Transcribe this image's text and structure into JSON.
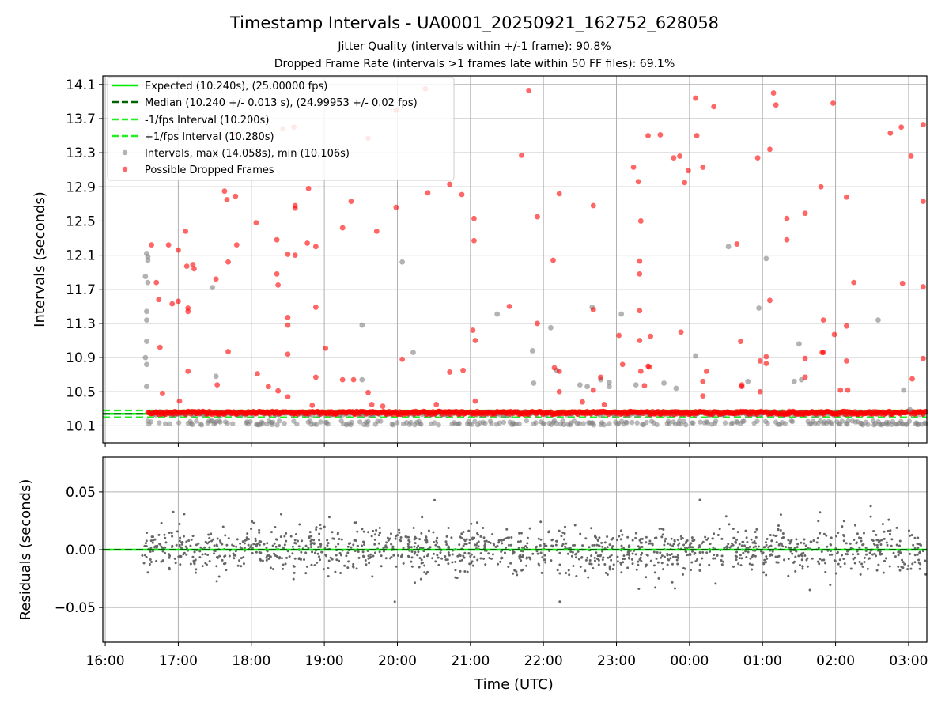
{
  "title": "Timestamp Intervals - UA0001_20250921_162752_628058",
  "subtitle_lines": [
    "Jitter Quality (intervals within +/-1 frame): 90.8%",
    "Dropped Frame Rate (intervals >1 frames late within 50 FF files): 69.1%"
  ],
  "colors": {
    "expected": "#00ee00",
    "median": "#006400",
    "fps_bounds": "#22ee22",
    "intervals": "#808080",
    "dropped": "#ff0000",
    "residuals": "#666666",
    "grid": "#b0b0b0"
  },
  "chart_data": [
    {
      "type": "scatter",
      "panel": "intervals",
      "ylabel": "Intervals (seconds)",
      "xlabel": "",
      "x_range": [
        "16:00",
        "03:15"
      ],
      "x_ticks": [
        "16:00",
        "17:00",
        "18:00",
        "19:00",
        "20:00",
        "21:00",
        "22:00",
        "23:00",
        "00:00",
        "01:00",
        "02:00",
        "03:00"
      ],
      "ylim": [
        9.9,
        14.2
      ],
      "y_ticks": [
        10.1,
        10.5,
        10.9,
        11.3,
        11.7,
        12.1,
        12.5,
        12.9,
        13.3,
        13.7,
        14.1
      ],
      "y_tick_labels": [
        "10.1",
        "10.5",
        "10.9",
        "11.3",
        "11.7",
        "12.1",
        "12.5",
        "12.9",
        "13.3",
        "13.7",
        "14.1"
      ],
      "grid": true,
      "legend_position": "top-left",
      "legend": [
        {
          "label": "Expected (10.240s), (25.00000 fps)",
          "style": "line",
          "color_key": "expected"
        },
        {
          "label": "Median (10.240 +/- 0.013 s), (24.99953 +/- 0.02 fps)",
          "style": "dashed",
          "color_key": "median"
        },
        {
          "label": "-1/fps Interval (10.200s)",
          "style": "dashed",
          "color_key": "fps_bounds"
        },
        {
          "label": "+1/fps Interval (10.280s)",
          "style": "dashed",
          "color_key": "fps_bounds"
        },
        {
          "label": "Intervals, max (14.058s), min (10.106s)",
          "style": "dot",
          "color_key": "intervals"
        },
        {
          "label": "Possible Dropped Frames",
          "style": "dot",
          "color_key": "dropped"
        }
      ],
      "series": [
        {
          "name": "Expected (10.240s), (25.00000 fps)",
          "kind": "hline",
          "y": 10.24
        },
        {
          "name": "Median (10.240 +/- 0.013 s), (24.99953 +/- 0.02 fps)",
          "kind": "hline",
          "y": 10.24
        },
        {
          "name": "-1/fps Interval (10.200s)",
          "kind": "hline",
          "y": 10.2
        },
        {
          "name": "+1/fps Interval (10.280s)",
          "kind": "hline",
          "y": 10.28
        },
        {
          "name": "Possible Dropped Frames",
          "kind": "scatter",
          "points": [
            [
              "16:38",
              12.22
            ],
            [
              "16:42",
              11.78
            ],
            [
              "16:44",
              11.58
            ],
            [
              "16:45",
              11.02
            ],
            [
              "16:47",
              10.48
            ],
            [
              "16:52",
              12.22
            ],
            [
              "16:55",
              11.53
            ],
            [
              "17:00",
              12.16
            ],
            [
              "17:00",
              11.56
            ],
            [
              "17:01",
              10.39
            ],
            [
              "17:06",
              12.38
            ],
            [
              "17:07",
              11.97
            ],
            [
              "17:08",
              11.48
            ],
            [
              "17:08",
              11.44
            ],
            [
              "17:08",
              10.74
            ],
            [
              "17:12",
              11.99
            ],
            [
              "17:13",
              11.94
            ],
            [
              "17:31",
              11.82
            ],
            [
              "17:32",
              10.58
            ],
            [
              "17:38",
              12.85
            ],
            [
              "17:40",
              12.75
            ],
            [
              "17:41",
              12.02
            ],
            [
              "17:41",
              10.97
            ],
            [
              "17:46",
              13.52
            ],
            [
              "17:47",
              12.79
            ],
            [
              "17:48",
              12.22
            ],
            [
              "18:04",
              12.48
            ],
            [
              "18:05",
              10.71
            ],
            [
              "18:14",
              10.56
            ],
            [
              "18:21",
              12.28
            ],
            [
              "18:21",
              11.88
            ],
            [
              "18:22",
              11.75
            ],
            [
              "18:22",
              10.51
            ],
            [
              "18:26",
              13.58
            ],
            [
              "18:30",
              12.11
            ],
            [
              "18:30",
              11.37
            ],
            [
              "18:30",
              11.28
            ],
            [
              "18:30",
              10.94
            ],
            [
              "18:30",
              10.44
            ],
            [
              "18:35",
              13.6
            ],
            [
              "18:36",
              12.68
            ],
            [
              "18:36",
              12.65
            ],
            [
              "18:36",
              12.1
            ],
            [
              "18:46",
              12.24
            ],
            [
              "18:47",
              12.88
            ],
            [
              "18:50",
              10.34
            ],
            [
              "18:53",
              12.2
            ],
            [
              "18:53",
              11.49
            ],
            [
              "18:53",
              10.67
            ],
            [
              "19:01",
              11.01
            ],
            [
              "19:15",
              12.42
            ],
            [
              "19:15",
              10.64
            ],
            [
              "19:22",
              12.73
            ],
            [
              "19:24",
              10.64
            ],
            [
              "19:36",
              13.47
            ],
            [
              "19:36",
              10.49
            ],
            [
              "19:39",
              10.35
            ],
            [
              "19:43",
              12.38
            ],
            [
              "19:48",
              10.33
            ],
            [
              "19:59",
              13.8
            ],
            [
              "19:59",
              12.66
            ],
            [
              "20:04",
              10.88
            ],
            [
              "20:23",
              14.05
            ],
            [
              "20:25",
              12.83
            ],
            [
              "20:32",
              10.35
            ],
            [
              "20:43",
              12.93
            ],
            [
              "20:43",
              10.73
            ],
            [
              "20:53",
              12.81
            ],
            [
              "20:54",
              10.75
            ],
            [
              "21:03",
              12.53
            ],
            [
              "21:03",
              12.27
            ],
            [
              "21:02",
              11.22
            ],
            [
              "21:04",
              11.1
            ],
            [
              "21:04",
              10.39
            ],
            [
              "21:32",
              11.5
            ],
            [
              "21:42",
              13.27
            ],
            [
              "21:48",
              14.03
            ],
            [
              "21:55",
              12.55
            ],
            [
              "21:55",
              11.3
            ],
            [
              "22:08",
              12.04
            ],
            [
              "22:09",
              10.78
            ],
            [
              "22:13",
              12.82
            ],
            [
              "22:13",
              10.74
            ],
            [
              "22:13",
              10.5
            ],
            [
              "22:32",
              10.38
            ],
            [
              "22:41",
              12.68
            ],
            [
              "22:41",
              11.46
            ],
            [
              "22:41",
              10.52
            ],
            [
              "22:47",
              10.67
            ],
            [
              "22:50",
              10.35
            ],
            [
              "23:02",
              11.16
            ],
            [
              "23:05",
              10.82
            ],
            [
              "23:14",
              13.13
            ],
            [
              "23:18",
              12.96
            ],
            [
              "23:20",
              12.5
            ],
            [
              "23:19",
              12.03
            ],
            [
              "23:19",
              11.88
            ],
            [
              "23:19",
              11.45
            ],
            [
              "23:19",
              11.1
            ],
            [
              "23:20",
              10.74
            ],
            [
              "23:23",
              10.57
            ],
            [
              "23:26",
              13.5
            ],
            [
              "23:28",
              11.15
            ],
            [
              "23:27",
              10.79
            ],
            [
              "23:26",
              10.8
            ],
            [
              "23:36",
              13.51
            ],
            [
              "23:47",
              13.24
            ],
            [
              "23:52",
              13.26
            ],
            [
              "23:53",
              11.2
            ],
            [
              "23:56",
              12.95
            ],
            [
              "23:59",
              13.09
            ],
            [
              "23:58",
              10.26
            ],
            [
              "00:05",
              13.94
            ],
            [
              "00:06",
              13.5
            ],
            [
              "00:11",
              13.13
            ],
            [
              "00:11",
              10.62
            ],
            [
              "00:11",
              10.45
            ],
            [
              "00:14",
              10.74
            ],
            [
              "00:20",
              13.84
            ],
            [
              "00:39",
              12.23
            ],
            [
              "00:42",
              11.09
            ],
            [
              "00:43",
              10.56
            ],
            [
              "00:43",
              10.58
            ],
            [
              "00:56",
              13.24
            ],
            [
              "00:58",
              10.86
            ],
            [
              "00:58",
              10.5
            ],
            [
              "01:03",
              10.91
            ],
            [
              "01:03",
              10.83
            ],
            [
              "01:06",
              11.57
            ],
            [
              "01:06",
              13.34
            ],
            [
              "01:09",
              14.0
            ],
            [
              "01:11",
              13.86
            ],
            [
              "01:20",
              12.53
            ],
            [
              "01:20",
              12.28
            ],
            [
              "01:22",
              10.27
            ],
            [
              "01:35",
              10.67
            ],
            [
              "01:35",
              12.59
            ],
            [
              "01:35",
              10.89
            ],
            [
              "01:48",
              12.9
            ],
            [
              "01:50",
              11.34
            ],
            [
              "01:50",
              10.96
            ],
            [
              "01:49",
              10.96
            ],
            [
              "01:58",
              13.88
            ],
            [
              "01:59",
              11.17
            ],
            [
              "02:04",
              10.52
            ],
            [
              "02:09",
              12.78
            ],
            [
              "02:09",
              11.27
            ],
            [
              "02:09",
              10.86
            ],
            [
              "02:10",
              10.52
            ],
            [
              "02:15",
              11.78
            ],
            [
              "02:45",
              13.53
            ],
            [
              "02:54",
              13.6
            ],
            [
              "02:55",
              11.77
            ],
            [
              "03:02",
              13.26
            ],
            [
              "03:03",
              10.65
            ],
            [
              "03:12",
              13.63
            ],
            [
              "03:12",
              12.73
            ],
            [
              "03:12",
              11.73
            ],
            [
              "03:12",
              10.89
            ]
          ]
        },
        {
          "name": "Intervals, max (14.058s), min (10.106s)",
          "kind": "scatter",
          "points": [
            [
              "16:34",
              12.12
            ],
            [
              "16:35",
              12.08
            ],
            [
              "16:35",
              12.04
            ],
            [
              "16:33",
              11.85
            ],
            [
              "16:35",
              11.78
            ],
            [
              "16:34",
              11.44
            ],
            [
              "16:34",
              11.34
            ],
            [
              "16:34",
              11.09
            ],
            [
              "16:33",
              10.9
            ],
            [
              "16:34",
              10.82
            ],
            [
              "16:34",
              10.56
            ],
            [
              "17:28",
              11.72
            ],
            [
              "17:31",
              10.68
            ],
            [
              "19:31",
              11.28
            ],
            [
              "19:31",
              10.64
            ],
            [
              "20:04",
              12.02
            ],
            [
              "20:13",
              10.96
            ],
            [
              "21:22",
              11.41
            ],
            [
              "21:51",
              10.98
            ],
            [
              "21:52",
              10.6
            ],
            [
              "22:06",
              11.25
            ],
            [
              "22:11",
              10.75
            ],
            [
              "22:36",
              10.56
            ],
            [
              "22:30",
              10.58
            ],
            [
              "22:40",
              11.49
            ],
            [
              "22:47",
              10.64
            ],
            [
              "22:54",
              10.56
            ],
            [
              "22:54",
              10.61
            ],
            [
              "23:04",
              11.41
            ],
            [
              "23:16",
              10.58
            ],
            [
              "23:39",
              10.6
            ],
            [
              "23:49",
              10.54
            ],
            [
              "00:05",
              10.92
            ],
            [
              "00:32",
              12.2
            ],
            [
              "00:57",
              11.48
            ],
            [
              "01:03",
              12.06
            ],
            [
              "00:48",
              10.62
            ],
            [
              "01:26",
              10.62
            ],
            [
              "01:30",
              11.06
            ],
            [
              "01:32",
              10.64
            ],
            [
              "02:35",
              11.34
            ],
            [
              "02:56",
              10.52
            ],
            [
              "03:01",
              10.29
            ]
          ]
        }
      ]
    },
    {
      "type": "scatter",
      "panel": "residuals",
      "ylabel": "Residuals (seconds)",
      "xlabel": "Time (UTC)",
      "x_range": [
        "16:00",
        "03:15"
      ],
      "x_ticks": [
        "16:00",
        "17:00",
        "18:00",
        "19:00",
        "20:00",
        "21:00",
        "22:00",
        "23:00",
        "00:00",
        "01:00",
        "02:00",
        "03:00"
      ],
      "ylim": [
        -0.08,
        0.08
      ],
      "y_ticks": [
        -0.05,
        0.0,
        0.05
      ],
      "y_tick_labels": [
        "−0.05",
        "0.00",
        "0.05"
      ],
      "grid": true,
      "series": [
        {
          "name": "",
          "kind": "hline",
          "y": 0.0
        },
        {
          "name": "",
          "kind": "noise",
          "x_start": "16:30",
          "x_end": "03:15",
          "count": 1400,
          "std": 0.013
        }
      ]
    }
  ]
}
